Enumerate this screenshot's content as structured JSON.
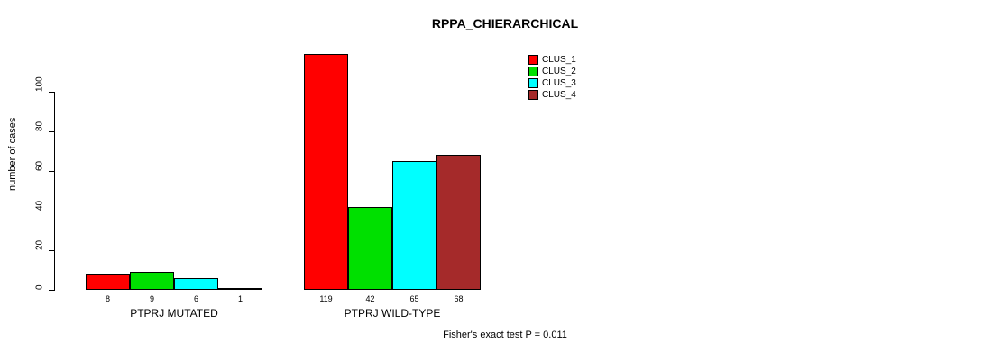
{
  "title": "RPPA_CHIERARCHICAL",
  "annotation": "Fisher's exact test P = 0.011",
  "chart_data": {
    "type": "bar",
    "title": "RPPA_CHIERARCHICAL",
    "ylabel": "number of cases",
    "xlabel": "",
    "ylim": [
      0,
      125
    ],
    "yticks": [
      0,
      20,
      40,
      60,
      80,
      100
    ],
    "grid": false,
    "legend_position": "top-right-outside",
    "categories": [
      "PTPRJ MUTATED",
      "PTPRJ WILD-TYPE"
    ],
    "series": [
      {
        "name": "CLUS_1",
        "color": "#FF0000",
        "values": [
          8,
          119
        ]
      },
      {
        "name": "CLUS_2",
        "color": "#00E000",
        "values": [
          9,
          42
        ]
      },
      {
        "name": "CLUS_3",
        "color": "#00FFFF",
        "values": [
          6,
          65
        ]
      },
      {
        "name": "CLUS_4",
        "color": "#A52A2A",
        "values": [
          1,
          68
        ]
      }
    ],
    "bar_labels": [
      [
        8,
        9,
        6,
        1
      ],
      [
        119,
        42,
        65,
        68
      ]
    ],
    "annotation": "Fisher's exact test P = 0.011"
  }
}
